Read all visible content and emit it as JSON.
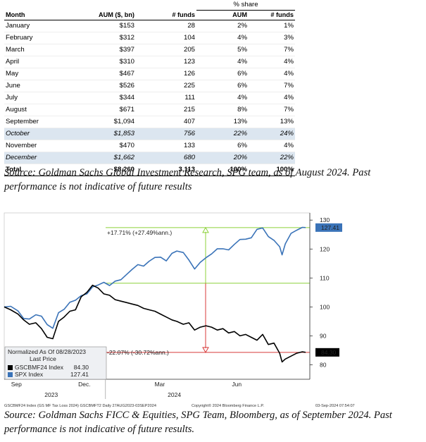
{
  "table": {
    "super_header": "% share",
    "headers": [
      "Month",
      "AUM ($, bn)",
      "# funds",
      "AUM",
      "# funds"
    ],
    "rows": [
      {
        "month": "January",
        "aum": "$153",
        "funds": "28",
        "aum_share": "2%",
        "funds_share": "1%",
        "highlight": false
      },
      {
        "month": "February",
        "aum": "$312",
        "funds": "104",
        "aum_share": "4%",
        "funds_share": "3%",
        "highlight": false
      },
      {
        "month": "March",
        "aum": "$397",
        "funds": "205",
        "aum_share": "5%",
        "funds_share": "7%",
        "highlight": false
      },
      {
        "month": "April",
        "aum": "$310",
        "funds": "123",
        "aum_share": "4%",
        "funds_share": "4%",
        "highlight": false
      },
      {
        "month": "May",
        "aum": "$467",
        "funds": "126",
        "aum_share": "6%",
        "funds_share": "4%",
        "highlight": false
      },
      {
        "month": "June",
        "aum": "$526",
        "funds": "225",
        "aum_share": "6%",
        "funds_share": "7%",
        "highlight": false
      },
      {
        "month": "July",
        "aum": "$344",
        "funds": "111",
        "aum_share": "4%",
        "funds_share": "4%",
        "highlight": false
      },
      {
        "month": "August",
        "aum": "$671",
        "funds": "215",
        "aum_share": "8%",
        "funds_share": "7%",
        "highlight": false
      },
      {
        "month": "September",
        "aum": "$1,094",
        "funds": "407",
        "aum_share": "13%",
        "funds_share": "13%",
        "highlight": false
      },
      {
        "month": "October",
        "aum": "$1,853",
        "funds": "756",
        "aum_share": "22%",
        "funds_share": "24%",
        "highlight": true
      },
      {
        "month": "November",
        "aum": "$470",
        "funds": "133",
        "aum_share": "6%",
        "funds_share": "4%",
        "highlight": false
      },
      {
        "month": "December",
        "aum": "$1,662",
        "funds": "680",
        "aum_share": "20%",
        "funds_share": "22%",
        "highlight": true
      }
    ],
    "total": {
      "month": "Total",
      "aum": "$8,260",
      "funds": "3,113",
      "aum_share": "100%",
      "funds_share": "100%"
    },
    "highlight_color": "#dce6f0"
  },
  "caption1": "Source: Goldman Sachs Global Investment Research, SPG team, as of August 2024. Past performance is not indicative of future results",
  "caption2": "Source: Goldman Sachs FICC & Equities, SPG Team, Bloomberg, as of September 2024. Past performance is not indicative of future results.",
  "chart_data": {
    "type": "line",
    "y_ticks": [
      80,
      90,
      100,
      110,
      120,
      130
    ],
    "ylim": [
      75,
      132
    ],
    "x_range": [
      "2023-08-28",
      "2024-09-03"
    ],
    "x_month_labels": [
      "Sep",
      "Dec.",
      "Mar",
      "Jun"
    ],
    "x_year_labels": [
      "2023",
      "2024"
    ],
    "legend": {
      "title": "Normalized As Of 08/28/2023",
      "subtitle": "Last Price",
      "items": [
        {
          "name": "GSCBMF24 Index",
          "value": "84.30"
        },
        {
          "name": "SPX Index",
          "value": "127.41"
        }
      ]
    },
    "annotations": {
      "spx_change": "+17.71% (+27.49%ann.)",
      "gs_change": "-22.07% (-30.72%ann.)",
      "spx_label": "127.41",
      "gs_label": "84.30"
    },
    "reference_lines": {
      "upper": 127.41,
      "middle": 108.2,
      "lower": 84.3
    },
    "colors": {
      "spx": "#3a73b8",
      "gs": "#000000",
      "green": "#8cd13a",
      "red": "#d83a3a"
    },
    "footer_left": "GSCBMF24 Index (GS MF Tax Loss 2024) GSCBMFT2 Daily 27AUG2023-03SEP2024",
    "footer_center": "Copyright© 2024 Bloomberg Finance L.P.",
    "footer_right": "03-Sep-2024 07:54:07",
    "series": [
      {
        "name": "SPX Index",
        "dates": [
          "2023-08-28",
          "2023-09-05",
          "2023-09-14",
          "2023-09-21",
          "2023-09-28",
          "2023-10-06",
          "2023-10-13",
          "2023-10-20",
          "2023-10-27",
          "2023-11-03",
          "2023-11-10",
          "2023-11-17",
          "2023-11-24",
          "2023-12-01",
          "2023-12-08",
          "2023-12-15",
          "2023-12-22",
          "2023-12-29",
          "2024-01-05",
          "2024-01-12",
          "2024-01-19",
          "2024-01-26",
          "2024-02-02",
          "2024-02-09",
          "2024-02-16",
          "2024-02-23",
          "2024-03-01",
          "2024-03-08",
          "2024-03-15",
          "2024-03-22",
          "2024-03-28",
          "2024-04-05",
          "2024-04-12",
          "2024-04-19",
          "2024-04-26",
          "2024-05-03",
          "2024-05-10",
          "2024-05-17",
          "2024-05-24",
          "2024-05-31",
          "2024-06-07",
          "2024-06-14",
          "2024-06-21",
          "2024-06-28",
          "2024-07-05",
          "2024-07-12",
          "2024-07-19",
          "2024-07-26",
          "2024-08-02",
          "2024-08-05",
          "2024-08-09",
          "2024-08-16",
          "2024-08-23",
          "2024-08-30",
          "2024-09-03"
        ],
        "values": [
          100.0,
          100.2,
          98.6,
          96.0,
          95.8,
          97.3,
          96.8,
          93.9,
          92.6,
          98.0,
          99.2,
          101.6,
          102.3,
          103.9,
          104.5,
          106.9,
          107.6,
          108.5,
          107.4,
          108.9,
          109.4,
          111.2,
          113.0,
          114.6,
          114.1,
          115.8,
          117.1,
          117.2,
          115.9,
          118.5,
          119.3,
          118.8,
          116.2,
          113.1,
          115.4,
          117.0,
          118.3,
          120.1,
          120.1,
          119.7,
          121.6,
          123.3,
          123.4,
          123.9,
          126.8,
          127.3,
          124.3,
          123.0,
          120.8,
          118.0,
          121.8,
          125.4,
          126.5,
          127.5,
          127.41
        ]
      },
      {
        "name": "GSCBMF24 Index",
        "dates": [
          "2023-08-28",
          "2023-09-05",
          "2023-09-14",
          "2023-09-21",
          "2023-09-28",
          "2023-10-06",
          "2023-10-13",
          "2023-10-20",
          "2023-10-27",
          "2023-11-03",
          "2023-11-10",
          "2023-11-17",
          "2023-11-24",
          "2023-12-01",
          "2023-12-08",
          "2023-12-15",
          "2023-12-22",
          "2023-12-29",
          "2024-01-05",
          "2024-01-12",
          "2024-01-19",
          "2024-01-26",
          "2024-02-02",
          "2024-02-09",
          "2024-02-16",
          "2024-02-23",
          "2024-03-01",
          "2024-03-08",
          "2024-03-15",
          "2024-03-22",
          "2024-03-28",
          "2024-04-05",
          "2024-04-12",
          "2024-04-19",
          "2024-04-26",
          "2024-05-03",
          "2024-05-10",
          "2024-05-17",
          "2024-05-24",
          "2024-05-31",
          "2024-06-07",
          "2024-06-14",
          "2024-06-21",
          "2024-06-28",
          "2024-07-05",
          "2024-07-12",
          "2024-07-19",
          "2024-07-26",
          "2024-08-02",
          "2024-08-05",
          "2024-08-09",
          "2024-08-16",
          "2024-08-23",
          "2024-08-30",
          "2024-09-03"
        ],
        "values": [
          100.0,
          99.0,
          97.5,
          95.5,
          94.0,
          94.5,
          92.5,
          89.5,
          89.0,
          95.0,
          96.5,
          98.5,
          99.0,
          103.5,
          105.0,
          107.5,
          106.5,
          104.5,
          104.0,
          102.5,
          102.0,
          101.5,
          101.0,
          100.5,
          99.5,
          99.0,
          98.5,
          97.5,
          96.5,
          95.5,
          95.0,
          94.0,
          94.5,
          92.0,
          93.0,
          93.5,
          93.0,
          92.0,
          92.5,
          91.0,
          91.5,
          90.0,
          90.5,
          89.5,
          88.5,
          90.5,
          87.0,
          87.5,
          84.0,
          81.0,
          82.0,
          83.0,
          84.0,
          84.5,
          84.3
        ]
      }
    ]
  }
}
